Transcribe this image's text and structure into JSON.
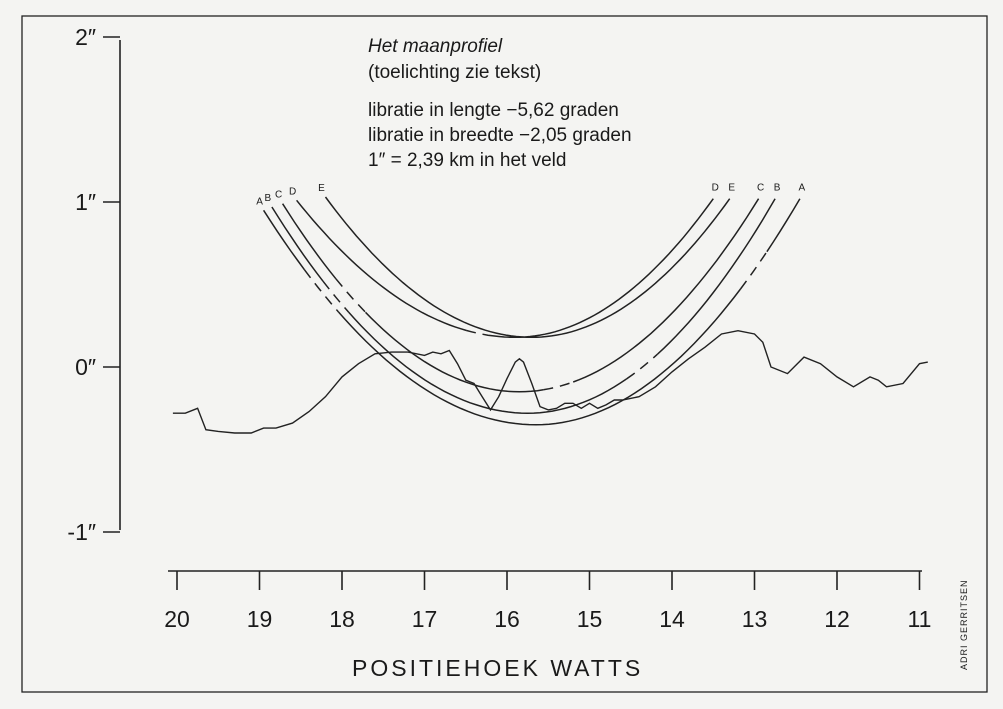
{
  "chart_data": {
    "type": "line",
    "title": "Het maanprofiel",
    "subtitle": "(toelichting zie tekst)",
    "annotations": [
      "libratie in lengte  −5,62 graden",
      "libratie in breedte  −2,05 graden",
      "1″ = 2,39 km in het veld"
    ],
    "credit": "ADRI GERRITSEN",
    "xlabel": "POSITIEHOEK   WATTS",
    "x_axis_reversed": true,
    "xlim": [
      20,
      11
    ],
    "ylim": [
      -1,
      2
    ],
    "x_ticks": [
      {
        "value": 20,
        "label": "20"
      },
      {
        "value": 19,
        "label": "19"
      },
      {
        "value": 18,
        "label": "18"
      },
      {
        "value": 17,
        "label": "17"
      },
      {
        "value": 16,
        "label": "16"
      },
      {
        "value": 15,
        "label": "15"
      },
      {
        "value": 14,
        "label": "14"
      },
      {
        "value": 13,
        "label": "13"
      },
      {
        "value": 12,
        "label": "12"
      },
      {
        "value": 11,
        "label": "11"
      }
    ],
    "y_ticks": [
      {
        "value": 2,
        "label": "2″"
      },
      {
        "value": 1,
        "label": "1″"
      },
      {
        "value": 0,
        "label": "0″"
      },
      {
        "value": -1,
        "label": "-1″"
      }
    ],
    "grid": false,
    "profile": {
      "x": [
        20.05,
        19.9,
        19.75,
        19.65,
        19.5,
        19.3,
        19.1,
        18.95,
        18.8,
        18.6,
        18.4,
        18.2,
        18.0,
        17.8,
        17.6,
        17.4,
        17.2,
        17.0,
        16.9,
        16.8,
        16.7,
        16.6,
        16.5,
        16.4,
        16.3,
        16.2,
        16.1,
        16.0,
        15.9,
        15.85,
        15.8,
        15.7,
        15.6,
        15.5,
        15.4,
        15.3,
        15.2,
        15.1,
        15.0,
        14.9,
        14.8,
        14.7,
        14.6,
        14.4,
        14.2,
        14.0,
        13.8,
        13.6,
        13.4,
        13.2,
        13.0,
        12.9,
        12.8,
        12.6,
        12.4,
        12.2,
        12.0,
        11.8,
        11.6,
        11.5,
        11.4,
        11.2,
        11.0,
        10.9
      ],
      "y": [
        -0.28,
        -0.28,
        -0.25,
        -0.38,
        -0.39,
        -0.4,
        -0.4,
        -0.37,
        -0.37,
        -0.34,
        -0.27,
        -0.18,
        -0.06,
        0.02,
        0.08,
        0.09,
        0.09,
        0.07,
        0.09,
        0.08,
        0.1,
        0.02,
        -0.08,
        -0.1,
        -0.18,
        -0.26,
        -0.18,
        -0.07,
        0.03,
        0.05,
        0.03,
        -0.1,
        -0.24,
        -0.26,
        -0.25,
        -0.22,
        -0.22,
        -0.25,
        -0.22,
        -0.25,
        -0.23,
        -0.2,
        -0.2,
        -0.18,
        -0.12,
        -0.03,
        0.05,
        0.12,
        0.2,
        0.22,
        0.2,
        0.15,
        0.0,
        -0.04,
        0.06,
        0.02,
        -0.06,
        -0.12,
        -0.06,
        -0.08,
        -0.12,
        -0.1,
        0.02,
        0.03
      ]
    },
    "series": [
      {
        "name": "A",
        "label_pos": "left-and-right",
        "vertex_x": 15.65,
        "vertex_y": -0.35,
        "left_arm_top": [
          18.95,
          0.95
        ],
        "right_arm_top": [
          12.45,
          1.02
        ],
        "dashed": [
          [
            18.5,
            18.1
          ],
          [
            13.2,
            12.9
          ]
        ]
      },
      {
        "name": "B",
        "label_pos": "left-and-right",
        "vertex_x": 15.75,
        "vertex_y": -0.28,
        "left_arm_top": [
          18.85,
          0.97
        ],
        "right_arm_top": [
          12.75,
          1.02
        ],
        "dashed": [
          [
            18.3,
            17.95
          ],
          [
            14.6,
            14.2
          ]
        ]
      },
      {
        "name": "C",
        "label_pos": "left-and-right",
        "vertex_x": 15.85,
        "vertex_y": -0.15,
        "left_arm_top": [
          18.72,
          0.99
        ],
        "right_arm_top": [
          12.95,
          1.02
        ],
        "dashed": [
          [
            18.1,
            17.75
          ],
          [
            15.6,
            15.2
          ]
        ]
      },
      {
        "name": "D",
        "label_pos": "left-and-right",
        "vertex_x": 15.9,
        "vertex_y": 0.18,
        "left_arm_top": [
          18.55,
          1.01
        ],
        "right_arm_top": [
          13.5,
          1.02
        ],
        "dashed": [
          [
            16.5,
            16.3
          ]
        ]
      },
      {
        "name": "E",
        "label_pos": "left-and-right",
        "vertex_x": 15.7,
        "vertex_y": 0.18,
        "left_arm_top": [
          18.2,
          1.03
        ],
        "right_arm_top": [
          13.3,
          1.02
        ],
        "dashed": []
      }
    ]
  }
}
